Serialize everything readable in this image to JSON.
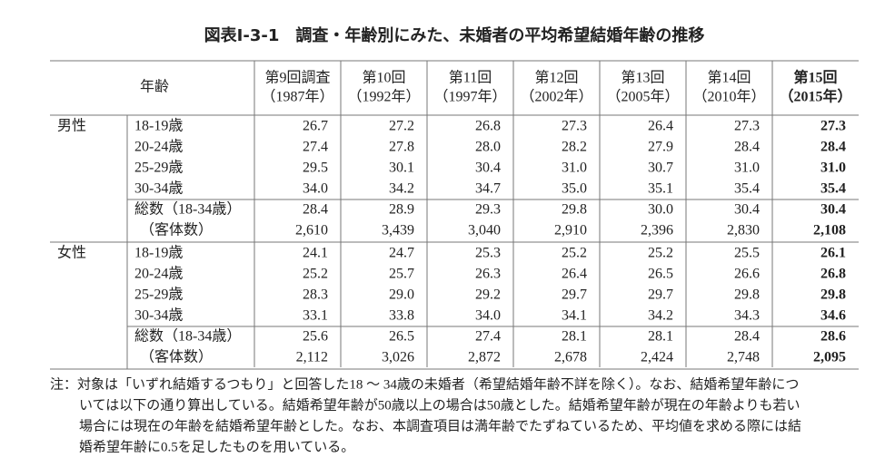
{
  "title": "図表Ⅰ-3-1　調査・年齢別にみた、未婚者の平均希望結婚年齢の推移",
  "table": {
    "corner": "年齢",
    "columns": [
      {
        "name": "第9回調査",
        "year": "（1987年）"
      },
      {
        "name": "第10回",
        "year": "（1992年）"
      },
      {
        "name": "第11回",
        "year": "（1997年）"
      },
      {
        "name": "第12回",
        "year": "（2002年）"
      },
      {
        "name": "第13回",
        "year": "（2005年）"
      },
      {
        "name": "第14回",
        "year": "（2010年）"
      },
      {
        "name": "第15回",
        "year": "（2015年）"
      }
    ],
    "groups": [
      {
        "label": "男性",
        "rows": [
          {
            "label": "18-19歳",
            "values": [
              "26.7",
              "27.2",
              "26.8",
              "27.3",
              "26.4",
              "27.3",
              "27.3"
            ]
          },
          {
            "label": "20-24歳",
            "values": [
              "27.4",
              "27.8",
              "28.0",
              "28.2",
              "27.9",
              "28.4",
              "28.4"
            ]
          },
          {
            "label": "25-29歳",
            "values": [
              "29.5",
              "30.1",
              "30.4",
              "31.0",
              "30.7",
              "31.0",
              "31.0"
            ]
          },
          {
            "label": "30-34歳",
            "values": [
              "34.0",
              "34.2",
              "34.7",
              "35.0",
              "35.1",
              "35.4",
              "35.4"
            ]
          },
          {
            "label": "総数（18-34歳）",
            "values": [
              "28.4",
              "28.9",
              "29.3",
              "29.8",
              "30.0",
              "30.4",
              "30.4"
            ]
          },
          {
            "label": "（客体数）",
            "values": [
              "2,610",
              "3,439",
              "3,040",
              "2,910",
              "2,396",
              "2,830",
              "2,108"
            ]
          }
        ]
      },
      {
        "label": "女性",
        "rows": [
          {
            "label": "18-19歳",
            "values": [
              "24.1",
              "24.7",
              "25.3",
              "25.2",
              "25.2",
              "25.5",
              "26.1"
            ]
          },
          {
            "label": "20-24歳",
            "values": [
              "25.2",
              "25.7",
              "26.3",
              "26.4",
              "26.5",
              "26.6",
              "26.8"
            ]
          },
          {
            "label": "25-29歳",
            "values": [
              "28.3",
              "29.0",
              "29.2",
              "29.7",
              "29.7",
              "29.8",
              "29.8"
            ]
          },
          {
            "label": "30-34歳",
            "values": [
              "33.1",
              "33.8",
              "34.0",
              "34.1",
              "34.2",
              "34.3",
              "34.6"
            ]
          },
          {
            "label": "総数（18-34歳）",
            "values": [
              "25.6",
              "26.5",
              "27.4",
              "28.1",
              "28.1",
              "28.4",
              "28.6"
            ]
          },
          {
            "label": "（客体数）",
            "values": [
              "2,112",
              "3,026",
              "2,872",
              "2,678",
              "2,424",
              "2,748",
              "2,095"
            ]
          }
        ]
      }
    ]
  },
  "note": [
    "注：対象は「いずれ結婚するつもり」と回答した18 ～ 34歳の未婚者（希望結婚年齢不詳を除く）。なお、結婚希望年齢につ",
    "いては以下の通り算出している。結婚希望年齢が50歳以上の場合は50歳とした。結婚希望年齢が現在の年齢よりも若い",
    "場合には現在の年齢を結婚希望年齢とした。なお、本調査項目は満年齢でたずねているため、平均値を求める際には結",
    "婚希望年齢に0.5を足したものを用いている。"
  ]
}
